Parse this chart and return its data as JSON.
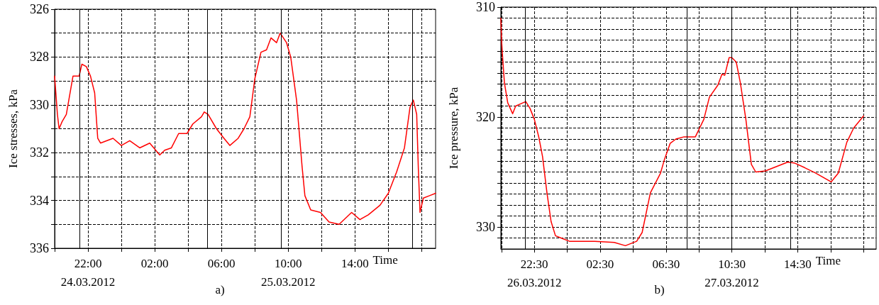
{
  "chart_data": [
    {
      "type": "line",
      "ylabel": "Ice stresses, kPa",
      "xlabel": "Time",
      "annotations": [
        "a)"
      ],
      "xlim": [
        "2012-03-24T20:00",
        "2012-03-25T18:50"
      ],
      "ylim": [
        336,
        326
      ],
      "xticks": [
        {
          "value": "2012-03-24T20:00",
          "label": null
        },
        {
          "value": "2012-03-24T22:00",
          "label": "22:00\n24.03.2012"
        },
        {
          "value": "2012-03-25T00:00",
          "label": null
        },
        {
          "value": "2012-03-25T02:00",
          "label": "02:00"
        },
        {
          "value": "2012-03-25T04:00",
          "label": null
        },
        {
          "value": "2012-03-25T06:00",
          "label": "06:00"
        },
        {
          "value": "2012-03-25T08:00",
          "label": null
        },
        {
          "value": "2012-03-25T10:00",
          "label": "10:00\n25.03.2012"
        },
        {
          "value": "2012-03-25T12:00",
          "label": null
        },
        {
          "value": "2012-03-25T14:00",
          "label": "14:00"
        },
        {
          "value": "2012-03-25T16:00",
          "label": null
        },
        {
          "value": "2012-03-25T18:00",
          "label": null
        }
      ],
      "yticks": [
        326,
        {
          "value": 327,
          "label": null
        },
        328,
        {
          "value": 329,
          "label": null
        },
        330,
        {
          "value": 331,
          "label": null
        },
        332,
        {
          "value": 333,
          "label": null
        },
        334,
        {
          "value": 335,
          "label": null
        },
        336
      ],
      "grid": true,
      "marker": "none",
      "line_style": "solid",
      "ref_lines": [
        {
          "axis": "x",
          "value": "2012-03-24T21:31",
          "label": null,
          "color": "#000000",
          "line_style": "solid"
        },
        {
          "axis": "x",
          "value": "2012-03-25T05:08",
          "label": null,
          "color": "#000000",
          "line_style": "solid"
        },
        {
          "axis": "x",
          "value": "2012-03-25T09:34",
          "label": null,
          "color": "#000000",
          "line_style": "solid"
        },
        {
          "axis": "x",
          "value": "2012-03-25T17:26",
          "label": null,
          "color": "#000000",
          "line_style": "solid"
        }
      ],
      "series": [
        {
          "color": "#ff0000",
          "x": [
            "2012-03-24T20:00",
            "2012-03-24T20:10",
            "2012-03-24T20:16",
            "2012-03-24T20:27",
            "2012-03-24T20:42",
            "2012-03-24T21:06",
            "2012-03-24T21:28",
            "2012-03-24T21:38",
            "2012-03-24T21:54",
            "2012-03-24T22:09",
            "2012-03-24T22:24",
            "2012-03-24T22:35",
            "2012-03-24T22:45",
            "2012-03-24T23:30",
            "2012-03-25T00:00",
            "2012-03-25T00:30",
            "2012-03-25T01:06",
            "2012-03-25T01:42",
            "2012-03-25T02:18",
            "2012-03-25T02:36",
            "2012-03-25T03:00",
            "2012-03-25T03:26",
            "2012-03-25T03:56",
            "2012-03-25T04:17",
            "2012-03-25T04:48",
            "2012-03-25T04:58",
            "2012-03-25T05:12",
            "2012-03-25T05:42",
            "2012-03-25T06:09",
            "2012-03-25T06:30",
            "2012-03-25T07:00",
            "2012-03-25T07:21",
            "2012-03-25T07:42",
            "2012-03-25T08:00",
            "2012-03-25T08:22",
            "2012-03-25T08:42",
            "2012-03-25T08:58",
            "2012-03-25T09:18",
            "2012-03-25T09:31",
            "2012-03-25T09:54",
            "2012-03-25T10:09",
            "2012-03-25T10:30",
            "2012-03-25T10:50",
            "2012-03-25T11:00",
            "2012-03-25T11:21",
            "2012-03-25T11:56",
            "2012-03-25T12:27",
            "2012-03-25T13:03",
            "2012-03-25T13:48",
            "2012-03-25T14:18",
            "2012-03-25T14:48",
            "2012-03-25T15:30",
            "2012-03-25T16:00",
            "2012-03-25T16:30",
            "2012-03-25T16:58",
            "2012-03-25T17:18",
            "2012-03-25T17:30",
            "2012-03-25T17:42",
            "2012-03-25T17:48",
            "2012-03-25T17:54",
            "2012-03-25T18:06",
            "2012-03-25T18:28",
            "2012-03-25T18:50"
          ],
          "values": [
            328.8,
            330.4,
            331.0,
            330.7,
            330.4,
            328.8,
            328.8,
            328.3,
            328.4,
            328.8,
            329.5,
            331.4,
            331.6,
            331.4,
            331.7,
            331.5,
            331.8,
            331.6,
            332.1,
            331.9,
            331.8,
            331.2,
            331.2,
            330.8,
            330.5,
            330.3,
            330.4,
            331.0,
            331.4,
            331.7,
            331.4,
            331.0,
            330.5,
            328.9,
            327.8,
            327.7,
            327.2,
            327.4,
            327.0,
            327.4,
            328.0,
            329.8,
            332.6,
            333.8,
            334.4,
            334.5,
            334.9,
            335.0,
            334.5,
            334.8,
            334.6,
            334.2,
            333.7,
            332.8,
            331.8,
            330.1,
            329.8,
            330.4,
            332.7,
            334.5,
            333.9,
            333.8,
            333.7
          ]
        }
      ]
    },
    {
      "type": "line",
      "ylabel": "Ice pressure, kPa",
      "xlabel": "Time",
      "annotations": [
        "b)"
      ],
      "xlim": [
        "2012-03-26T20:28",
        "2012-03-27T19:16"
      ],
      "ylim": [
        332,
        310
      ],
      "xticks": [
        {
          "value": "2012-03-26T20:30",
          "label": null
        },
        {
          "value": "2012-03-26T22:30",
          "label": "22:30\n26.03.2012"
        },
        {
          "value": "2012-03-27T00:30",
          "label": null
        },
        {
          "value": "2012-03-27T02:30",
          "label": "02:30"
        },
        {
          "value": "2012-03-27T04:30",
          "label": null
        },
        {
          "value": "2012-03-27T06:30",
          "label": "06:30"
        },
        {
          "value": "2012-03-27T08:30",
          "label": null
        },
        {
          "value": "2012-03-27T10:30",
          "label": "10:30\n27.03.2012"
        },
        {
          "value": "2012-03-27T12:30",
          "label": null
        },
        {
          "value": "2012-03-27T14:30",
          "label": "14:30"
        },
        {
          "value": "2012-03-27T16:30",
          "label": null
        },
        {
          "value": "2012-03-27T18:30",
          "label": null
        }
      ],
      "yticks": [
        310,
        {
          "value": 311,
          "label": null
        },
        {
          "value": 312,
          "label": null
        },
        {
          "value": 313,
          "label": null
        },
        {
          "value": 314,
          "label": null
        },
        {
          "value": 315,
          "label": null
        },
        {
          "value": 316,
          "label": null
        },
        {
          "value": 317,
          "label": null
        },
        {
          "value": 318,
          "label": null
        },
        {
          "value": 319,
          "label": null
        },
        320,
        {
          "value": 321,
          "label": null
        },
        {
          "value": 322,
          "label": null
        },
        {
          "value": 323,
          "label": null
        },
        {
          "value": 324,
          "label": null
        },
        {
          "value": 325,
          "label": null
        },
        {
          "value": 326,
          "label": null
        },
        {
          "value": 327,
          "label": null
        },
        {
          "value": 328,
          "label": null
        },
        {
          "value": 329,
          "label": null
        },
        330,
        {
          "value": 331,
          "label": null
        }
      ],
      "grid": true,
      "marker": "none",
      "line_style": "solid",
      "ref_lines": [
        {
          "axis": "x",
          "value": "2012-03-26T21:56",
          "label": null,
          "color": "#000000",
          "line_style": "solid"
        },
        {
          "axis": "x",
          "value": "2012-03-27T07:47",
          "label": null,
          "color": "#000000",
          "line_style": "solid"
        },
        {
          "axis": "x",
          "value": "2012-03-27T10:30",
          "label": null,
          "color": "#000000",
          "line_style": "solid"
        },
        {
          "axis": "x",
          "value": "2012-03-27T14:04",
          "label": null,
          "color": "#000000",
          "line_style": "solid"
        }
      ],
      "series": [
        {
          "color": "#ff0000",
          "x": [
            "2012-03-26T20:28",
            "2012-03-26T20:31",
            "2012-03-26T20:35",
            "2012-03-26T20:41",
            "2012-03-26T20:53",
            "2012-03-26T21:11",
            "2012-03-26T21:22",
            "2012-03-26T21:49",
            "2012-03-26T21:59",
            "2012-03-26T22:14",
            "2012-03-26T22:30",
            "2012-03-26T22:46",
            "2012-03-26T23:00",
            "2012-03-26T23:16",
            "2012-03-26T23:31",
            "2012-03-26T23:47",
            "2012-03-27T00:07",
            "2012-03-27T00:38",
            "2012-03-27T02:10",
            "2012-03-27T03:21",
            "2012-03-27T04:02",
            "2012-03-27T04:43",
            "2012-03-27T05:03",
            "2012-03-27T05:33",
            "2012-03-27T06:10",
            "2012-03-27T06:25",
            "2012-03-27T06:45",
            "2012-03-27T07:06",
            "2012-03-27T07:36",
            "2012-03-27T08:17",
            "2012-03-27T08:48",
            "2012-03-27T09:08",
            "2012-03-27T09:39",
            "2012-03-27T09:54",
            "2012-03-27T10:04",
            "2012-03-27T10:20",
            "2012-03-27T10:30",
            "2012-03-27T10:46",
            "2012-03-27T11:01",
            "2012-03-27T11:21",
            "2012-03-27T11:41",
            "2012-03-27T11:57",
            "2012-03-27T12:32",
            "2012-03-27T13:13",
            "2012-03-27T13:54",
            "2012-03-27T14:20",
            "2012-03-27T14:55",
            "2012-03-27T15:36",
            "2012-03-27T16:32",
            "2012-03-27T16:58",
            "2012-03-27T17:29",
            "2012-03-27T17:54",
            "2012-03-27T18:30"
          ],
          "values": [
            311.0,
            313.2,
            314.8,
            316.9,
            318.7,
            319.7,
            319.0,
            318.7,
            318.6,
            319.2,
            320.2,
            321.8,
            323.6,
            326.9,
            329.5,
            330.8,
            331.0,
            331.3,
            331.3,
            331.4,
            331.7,
            331.3,
            330.5,
            326.9,
            325.1,
            323.8,
            322.4,
            322.0,
            321.8,
            321.8,
            320.2,
            318.2,
            317.1,
            316.1,
            316.2,
            314.6,
            314.6,
            315.0,
            316.9,
            320.2,
            324.3,
            325.0,
            324.9,
            324.5,
            324.1,
            324.2,
            324.6,
            325.1,
            325.9,
            325.1,
            322.3,
            321.0,
            319.9
          ]
        }
      ]
    }
  ]
}
